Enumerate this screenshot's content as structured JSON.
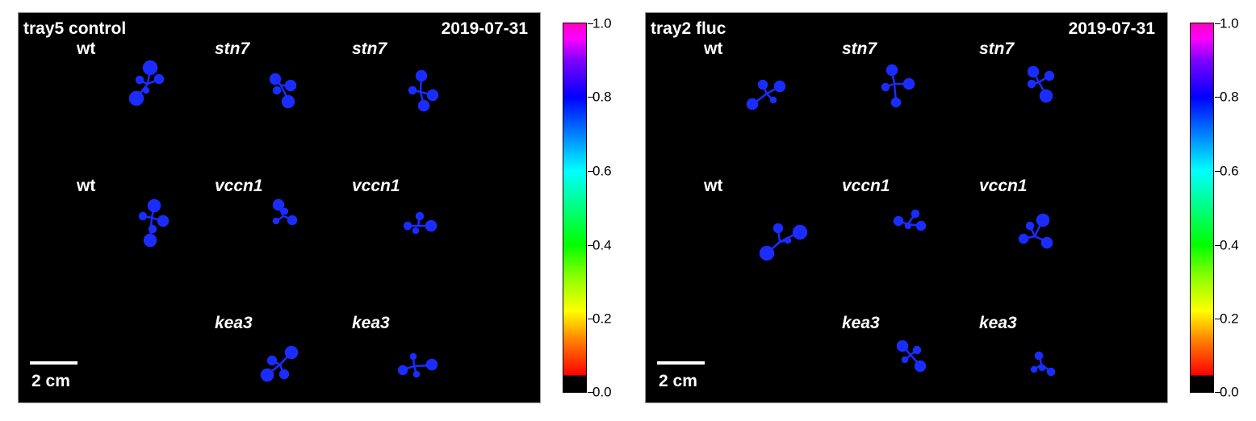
{
  "colors": {
    "background": "#000000",
    "plant": "#1a2cff",
    "text": "#ffffff"
  },
  "panels": [
    {
      "title": "tray5 control",
      "date": "2019-07-31",
      "scale_label": "2 cm",
      "labels": [
        {
          "text": "wt",
          "italic": false
        },
        {
          "text": "stn7",
          "italic": true
        },
        {
          "text": "stn7",
          "italic": true
        },
        {
          "text": "wt",
          "italic": false
        },
        {
          "text": "vccn1",
          "italic": true
        },
        {
          "text": "vccn1",
          "italic": true
        },
        {
          "text": "kea3",
          "italic": true
        },
        {
          "text": "kea3",
          "italic": true
        }
      ]
    },
    {
      "title": "tray2 fluc",
      "date": "2019-07-31",
      "scale_label": "2 cm",
      "labels": [
        {
          "text": "wt",
          "italic": false
        },
        {
          "text": "stn7",
          "italic": true
        },
        {
          "text": "stn7",
          "italic": true
        },
        {
          "text": "wt",
          "italic": false
        },
        {
          "text": "vccn1",
          "italic": true
        },
        {
          "text": "vccn1",
          "italic": true
        },
        {
          "text": "kea3",
          "italic": true
        },
        {
          "text": "kea3",
          "italic": true
        }
      ]
    }
  ],
  "colorbar": {
    "ticks": [
      "1.0",
      "0.8",
      "0.6",
      "0.4",
      "0.2",
      "0.0"
    ],
    "range": [
      0.0,
      1.0
    ]
  }
}
